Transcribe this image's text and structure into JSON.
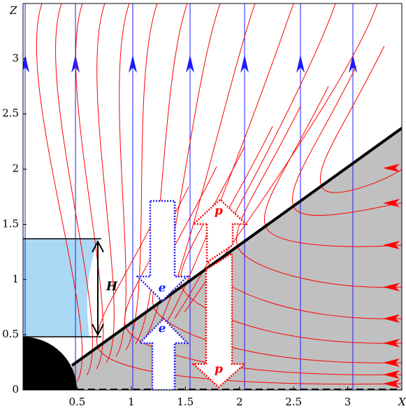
{
  "chart_data": {
    "type": "diagram",
    "xlabel": "X",
    "ylabel": "Z",
    "xlim": [
      0,
      3.5
    ],
    "ylim": [
      0,
      3.5
    ],
    "xticks": [
      0.5,
      1,
      1.5,
      2,
      2.5,
      3
    ],
    "yticks": [
      0,
      0.5,
      1,
      1.5,
      2,
      2.5,
      3
    ],
    "annotations": {
      "H": "H",
      "e_down": "e",
      "e_up": "e",
      "p_up": "p",
      "p_down": "p"
    }
  }
}
